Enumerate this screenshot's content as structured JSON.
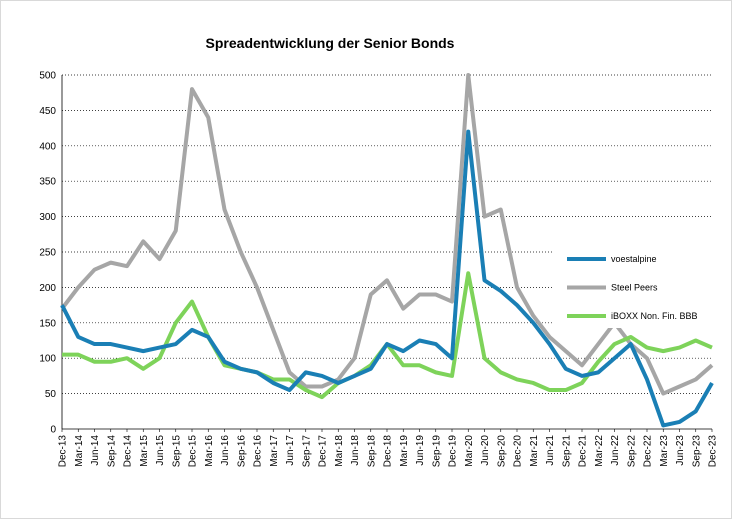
{
  "chart_data": {
    "type": "line",
    "title": "Spreadentwicklung der Senior Bonds",
    "categories": [
      "Dec-13",
      "Mar-14",
      "Jun-14",
      "Sep-14",
      "Dec-14",
      "Mar-15",
      "Jun-15",
      "Sep-15",
      "Dec-15",
      "Mar-16",
      "Jun-16",
      "Sep-16",
      "Dec-16",
      "Mar-17",
      "Jun-17",
      "Sep-17",
      "Dec-17",
      "Mar-18",
      "Jun-18",
      "Sep-18",
      "Dec-18",
      "Mar-19",
      "Jun-19",
      "Sep-19",
      "Dec-19",
      "Mar-20",
      "Jun-20",
      "Sep-20",
      "Dec-20",
      "Mar-21",
      "Jun-21",
      "Sep-21",
      "Dec-21",
      "Mar-22",
      "Jun-22",
      "Sep-22",
      "Dec-22",
      "Mar-23",
      "Jun-23",
      "Sep-23",
      "Dec-23"
    ],
    "series": [
      {
        "name": "voestalpine",
        "color": "#1a7fb5",
        "values": [
          175,
          130,
          120,
          120,
          115,
          110,
          115,
          120,
          140,
          130,
          95,
          85,
          80,
          65,
          55,
          80,
          75,
          65,
          75,
          85,
          120,
          110,
          125,
          120,
          100,
          420,
          210,
          195,
          175,
          150,
          120,
          85,
          75,
          80,
          100,
          120,
          70,
          5,
          10,
          25,
          65
        ]
      },
      {
        "name": "Steel Peers",
        "color": "#a6a6a6",
        "values": [
          170,
          200,
          225,
          235,
          230,
          265,
          240,
          280,
          480,
          440,
          310,
          250,
          200,
          140,
          80,
          60,
          60,
          70,
          100,
          190,
          210,
          170,
          190,
          190,
          180,
          500,
          300,
          310,
          200,
          160,
          130,
          110,
          90,
          120,
          150,
          120,
          100,
          50,
          60,
          70,
          90
        ]
      },
      {
        "name": "iBOXX Non. Fin. BBB",
        "color": "#7ed35a",
        "values": [
          105,
          105,
          95,
          95,
          100,
          85,
          100,
          150,
          180,
          130,
          90,
          85,
          80,
          70,
          70,
          55,
          45,
          65,
          75,
          90,
          120,
          90,
          90,
          80,
          75,
          220,
          100,
          80,
          70,
          65,
          55,
          55,
          65,
          95,
          120,
          130,
          115,
          110,
          115,
          125,
          115
        ]
      }
    ],
    "ylim": [
      0,
      500
    ],
    "yticks": [
      0,
      50,
      100,
      150,
      200,
      250,
      300,
      350,
      400,
      450,
      500
    ],
    "grid": true
  }
}
